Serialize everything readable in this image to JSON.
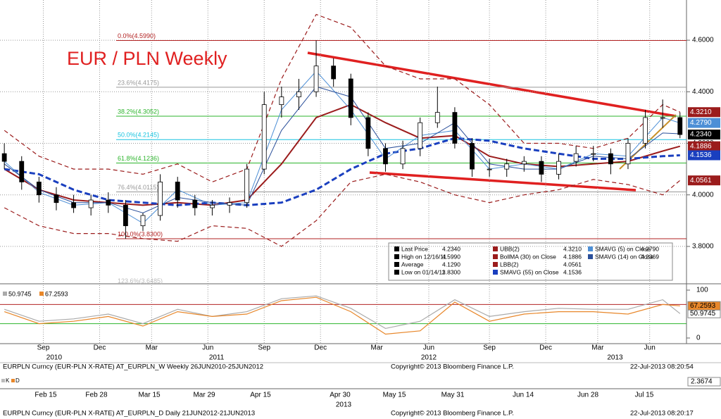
{
  "chart_data": {
    "type": "candlestick",
    "title": "EUR / PLN Weekly",
    "xlim": [
      1,
      159.5
    ],
    "ylim": [
      3.655,
      4.756
    ],
    "yticks": [
      {
        "value": 3.8,
        "label": "3.8000"
      },
      {
        "value": 4.0,
        "label": "4.0000"
      },
      {
        "value": 4.2,
        "label": "4.2000"
      },
      {
        "value": 4.4,
        "label": "4.4000"
      },
      {
        "value": 4.6,
        "label": "4.6000"
      }
    ],
    "xticks": [
      {
        "value": 11,
        "label": "Sep"
      },
      {
        "value": 24,
        "label": "Dec"
      },
      {
        "value": 36,
        "label": "Mar"
      },
      {
        "value": 49,
        "label": "Jun"
      },
      {
        "value": 62,
        "label": "Sep"
      },
      {
        "value": 75,
        "label": "Dec"
      },
      {
        "value": 88,
        "label": "Mar"
      },
      {
        "value": 100,
        "label": "Jun"
      },
      {
        "value": 114,
        "label": "Sep"
      },
      {
        "value": 127,
        "label": "Dec"
      },
      {
        "value": 139,
        "label": "Mar"
      },
      {
        "value": 151,
        "label": "Jun"
      }
    ],
    "year_ticks": [
      {
        "value": 13.5,
        "label": "2010"
      },
      {
        "value": 51,
        "label": "2011"
      },
      {
        "value": 100,
        "label": "2012"
      },
      {
        "value": 143,
        "label": "2013"
      }
    ],
    "grid": true,
    "x": [
      2,
      6,
      10,
      14,
      18,
      22,
      26,
      30,
      34,
      38,
      42,
      46,
      50,
      54,
      58,
      62,
      66,
      70,
      74,
      78,
      82,
      86,
      90,
      94,
      98,
      102,
      106,
      110,
      114,
      118,
      122,
      126,
      130,
      134,
      138,
      142,
      146,
      150,
      154,
      158
    ],
    "open": [
      4.16,
      4.13,
      4.05,
      4.0,
      3.97,
      3.95,
      3.98,
      3.96,
      3.88,
      3.92,
      4.05,
      3.98,
      3.95,
      3.96,
      3.97,
      4.1,
      4.35,
      4.38,
      4.4,
      4.5,
      4.45,
      4.3,
      4.18,
      4.12,
      4.18,
      4.28,
      4.32,
      4.2,
      4.1,
      4.1,
      4.12,
      4.13,
      4.08,
      4.13,
      4.16,
      4.16,
      4.12,
      4.2,
      4.3,
      4.3
    ],
    "high": [
      4.2,
      4.15,
      4.07,
      4.03,
      4.0,
      4.0,
      4.01,
      3.98,
      3.93,
      4.08,
      4.07,
      4.0,
      3.98,
      3.99,
      4.12,
      4.4,
      4.42,
      4.45,
      4.599,
      4.53,
      4.47,
      4.32,
      4.2,
      4.21,
      4.3,
      4.42,
      4.34,
      4.22,
      4.14,
      4.14,
      4.15,
      4.15,
      4.16,
      4.19,
      4.19,
      4.18,
      4.22,
      4.33,
      4.37,
      4.32
    ],
    "low": [
      4.1,
      4.02,
      3.97,
      3.94,
      3.93,
      3.92,
      3.93,
      3.83,
      3.86,
      3.9,
      3.95,
      3.92,
      3.92,
      3.93,
      3.95,
      4.08,
      4.3,
      4.33,
      4.38,
      4.42,
      4.27,
      4.15,
      4.09,
      4.1,
      4.15,
      4.26,
      4.18,
      4.07,
      4.07,
      4.07,
      4.09,
      4.05,
      4.06,
      4.11,
      4.13,
      4.08,
      4.1,
      4.18,
      4.26,
      4.22
    ],
    "close": [
      4.13,
      4.05,
      4.0,
      3.97,
      3.95,
      3.98,
      3.96,
      3.88,
      3.92,
      4.05,
      3.98,
      3.95,
      3.96,
      3.97,
      4.1,
      4.35,
      4.38,
      4.4,
      4.5,
      4.45,
      4.3,
      4.18,
      4.12,
      4.18,
      4.28,
      4.32,
      4.2,
      4.1,
      4.1,
      4.12,
      4.13,
      4.08,
      4.13,
      4.16,
      4.16,
      4.12,
      4.2,
      4.3,
      4.3,
      4.234
    ],
    "close_label": "4.2340",
    "overlay_x": [
      2,
      10,
      18,
      26,
      34,
      42,
      50,
      58,
      66,
      74,
      82,
      90,
      98,
      106,
      114,
      122,
      130,
      138,
      146,
      154,
      158
    ],
    "overlays": [
      {
        "color": "#9b1c1c",
        "dash": true,
        "width": 1.2,
        "label": "4.3210",
        "values": [
          4.25,
          4.15,
          4.1,
          4.1,
          4.08,
          4.12,
          4.05,
          4.1,
          4.45,
          4.7,
          4.65,
          4.5,
          4.45,
          4.45,
          4.35,
          4.2,
          4.2,
          4.18,
          4.22,
          4.35,
          4.321
        ]
      },
      {
        "color": "#9b1c1c",
        "dash": true,
        "width": 1.2,
        "label": "4.0561",
        "values": [
          3.95,
          3.88,
          3.85,
          3.85,
          3.83,
          3.82,
          3.88,
          3.87,
          3.8,
          3.9,
          4.05,
          4.08,
          4.05,
          4.0,
          3.97,
          4.0,
          4.02,
          4.06,
          4.04,
          4.0,
          4.0561
        ]
      },
      {
        "color": "#9b1c1c",
        "dash": false,
        "width": 2,
        "label": "4.1886",
        "values": [
          4.1,
          4.02,
          3.98,
          3.97,
          3.96,
          3.97,
          3.96,
          3.98,
          4.12,
          4.3,
          4.35,
          4.28,
          4.22,
          4.23,
          4.15,
          4.12,
          4.11,
          4.12,
          4.13,
          4.17,
          4.1886
        ]
      },
      {
        "color": "#1a3fbf",
        "dash": true,
        "width": 3,
        "label": "4.1536",
        "values": [
          4.1,
          4.08,
          4.02,
          3.98,
          3.97,
          3.96,
          3.97,
          3.96,
          3.97,
          4.02,
          4.1,
          4.16,
          4.18,
          4.22,
          4.21,
          4.18,
          4.16,
          4.14,
          4.14,
          4.15,
          4.1536
        ]
      },
      {
        "color": "#4d8fd6",
        "dash": false,
        "width": 1,
        "label": "4.2790",
        "values": [
          4.13,
          4.01,
          3.96,
          3.97,
          3.89,
          4.02,
          3.96,
          3.97,
          4.33,
          4.48,
          4.33,
          4.14,
          4.23,
          4.25,
          4.1,
          4.12,
          4.1,
          4.16,
          4.15,
          4.3,
          4.279
        ]
      },
      {
        "color": "#2a4f9a",
        "dash": false,
        "width": 1,
        "label": "4.2369",
        "values": [
          4.12,
          4.02,
          3.97,
          3.97,
          3.93,
          3.99,
          3.97,
          3.96,
          4.25,
          4.42,
          4.38,
          4.18,
          4.2,
          4.28,
          4.12,
          4.1,
          4.1,
          4.15,
          4.14,
          4.24,
          4.2369
        ]
      }
    ],
    "fib_levels": [
      {
        "value": 4.599,
        "label": "0.0%(4.5990)",
        "color": "#b22222"
      },
      {
        "value": 4.4175,
        "label": "23.6%(4.4175)",
        "color": "#999999"
      },
      {
        "value": 4.3052,
        "label": "38.2%(4.3052)",
        "color": "#2db52d"
      },
      {
        "value": 4.2145,
        "label": "50.0%(4.2145)",
        "color": "#19c4e0"
      },
      {
        "value": 4.1236,
        "label": "61.8%(4.1236)",
        "color": "#2db52d"
      },
      {
        "value": 4.0115,
        "label": "76.4%(4.0115)",
        "color": "#999999"
      },
      {
        "value": 3.83,
        "label": "100.0%(3.8300)",
        "color": "#b22222"
      },
      {
        "value": 3.6485,
        "label": "123.6%(3.6485)",
        "color": "#bbbbbb"
      }
    ],
    "legend": [
      {
        "label": "Last Price",
        "value": "4.2340",
        "color": "#000000"
      },
      {
        "label": "High on 12/16/11",
        "value": "4.5990",
        "color": "#000000"
      },
      {
        "label": "Average",
        "value": "4.1290",
        "color": "#000000"
      },
      {
        "label": "Low on 01/14/11",
        "value": "3.8300",
        "color": "#000000"
      },
      {
        "label": "UBB(2)",
        "value": "4.3210",
        "color": "#9b1c1c"
      },
      {
        "label": "BollMA (30) on Close",
        "value": "4.1886",
        "color": "#9b1c1c"
      },
      {
        "label": "LBB(2)",
        "value": "4.0561",
        "color": "#9b1c1c"
      },
      {
        "label": "SMAVG (55) on Close",
        "value": "4.1536",
        "color": "#1a3fbf"
      },
      {
        "label": "SMAVG (5) on Close",
        "value": "4.2790",
        "color": "#4d8fd6"
      },
      {
        "label": "SMAVG (14) on Close",
        "value": "4.2369",
        "color": "#2a4f9a"
      }
    ],
    "indicator": {
      "ylim": [
        -11.8,
        110.3
      ],
      "yticks": [
        0,
        100
      ],
      "levels": [
        {
          "value": 70,
          "color": "#b22222"
        },
        {
          "value": 30,
          "color": "#2db52d"
        }
      ],
      "series": [
        {
          "name": "50.9745",
          "color": "#aaaaaa",
          "values": [
            60,
            35,
            40,
            50,
            30,
            60,
            45,
            55,
            82,
            88,
            62,
            20,
            35,
            80,
            45,
            55,
            62,
            60,
            60,
            80,
            50.9745
          ]
        },
        {
          "name": "67.2593",
          "color": "#e8872a",
          "values": [
            55,
            30,
            35,
            45,
            25,
            55,
            45,
            50,
            78,
            85,
            55,
            8,
            15,
            75,
            35,
            50,
            55,
            55,
            50,
            70,
            67.2593
          ]
        }
      ]
    },
    "footer_weekly": [
      "EURPLN Curncy (EUR-PLN X-RATE) AT_EURPLN_W  Weekly 26JUN2010-25JUN2012",
      "Copyright© 2013 Bloomberg Finance L.P.",
      "22-Jul-2013 08:20:54"
    ],
    "daily_keys": [
      "K",
      "D"
    ],
    "daily_value": "2.3674",
    "daily_axis": [
      "Feb 15",
      "Feb 28",
      "Mar 15",
      "Mar 29",
      "Apr 15",
      "Apr 30",
      "May 15",
      "May 31",
      "Jun 14",
      "Jun 28",
      "Jul 15"
    ],
    "daily_year": "2013",
    "footer_daily": [
      "EURPLN Curncy (EUR-PLN X-RATE) AT_EURPLN_D  Daily 21JUN2012-21JUN2013",
      "Copyright© 2013 Bloomberg Finance L.P.",
      "22-Jul-2013 08:20:17"
    ]
  }
}
